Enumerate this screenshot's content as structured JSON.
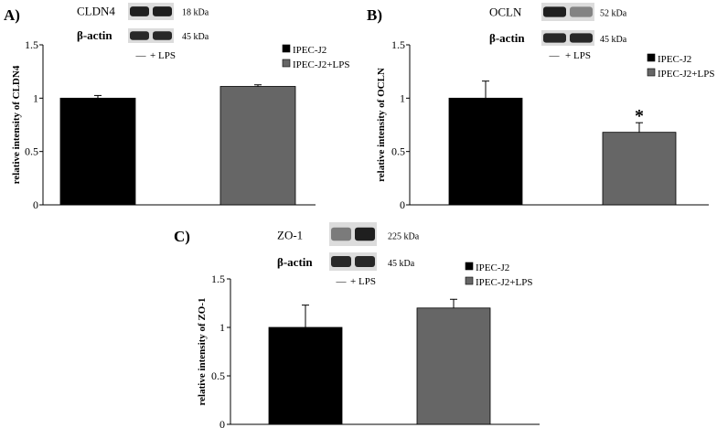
{
  "chart_data": [
    {
      "type": "bar",
      "panel_label": "A)",
      "ylabel": "relative intensity of CLDN4",
      "ylim": [
        0,
        1.5
      ],
      "y_ticks": [
        "0",
        "0.5",
        "1",
        "1.5"
      ],
      "categories": [
        "IPEC-J2",
        "IPEC-J2+LPS"
      ],
      "values": [
        1.0,
        1.11
      ],
      "errors": [
        0.025,
        0.015
      ],
      "significance": [
        "",
        ""
      ],
      "colors": [
        "#000000",
        "#666666"
      ],
      "legend": [
        "IPEC-J2",
        "IPEC-J2+LPS"
      ],
      "legend_position": "top-right",
      "blot": {
        "target": "CLDN4",
        "target_kda": "18 kDa",
        "control": "β-actin",
        "control_kda": "45 kDa",
        "lanes": [
          "—",
          "+ LPS"
        ]
      }
    },
    {
      "type": "bar",
      "panel_label": "B)",
      "ylabel": "relative intensity of OCLN",
      "ylim": [
        0,
        1.5
      ],
      "y_ticks": [
        "0",
        "0.5",
        "1",
        "1.5"
      ],
      "categories": [
        "IPEC-J2",
        "IPEC-J2+LPS"
      ],
      "values": [
        1.0,
        0.68
      ],
      "errors": [
        0.16,
        0.09
      ],
      "significance": [
        "",
        "*"
      ],
      "colors": [
        "#000000",
        "#666666"
      ],
      "legend": [
        "IPEC-J2",
        "IPEC-J2+LPS"
      ],
      "legend_position": "top-right",
      "blot": {
        "target": "OCLN",
        "target_kda": "52 kDa",
        "control": "β-actin",
        "control_kda": "45 kDa",
        "lanes": [
          "—",
          "+ LPS"
        ]
      }
    },
    {
      "type": "bar",
      "panel_label": "C)",
      "ylabel": "relative intensity of ZO-1",
      "ylim": [
        0,
        1.5
      ],
      "y_ticks": [
        "0",
        "0.5",
        "1",
        "1.5"
      ],
      "categories": [
        "IPEC-J2",
        "IPEC-J2+LPS"
      ],
      "values": [
        1.0,
        1.2
      ],
      "errors": [
        0.23,
        0.09
      ],
      "significance": [
        "",
        ""
      ],
      "colors": [
        "#000000",
        "#666666"
      ],
      "legend": [
        "IPEC-J2",
        "IPEC-J2+LPS"
      ],
      "legend_position": "top-right",
      "blot": {
        "target": "ZO-1",
        "target_kda": "225 kDa",
        "control": "β-actin",
        "control_kda": "45 kDa",
        "lanes": [
          "—",
          "+ LPS"
        ]
      }
    }
  ]
}
